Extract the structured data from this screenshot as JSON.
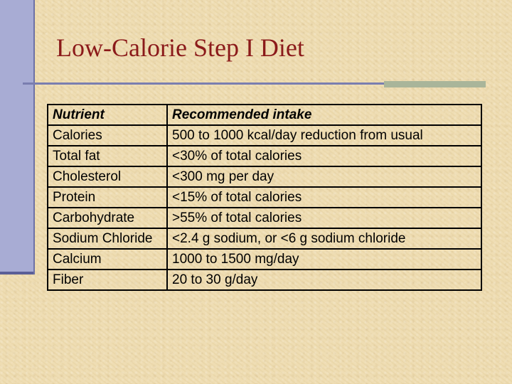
{
  "slide": {
    "title": "Low-Calorie Step I Diet",
    "accent_color": "#8b1a1a",
    "bar_color": "#a8acd4"
  },
  "table": {
    "headers": [
      "Nutrient",
      "Recommended intake"
    ],
    "rows": [
      [
        "Calories",
        "500 to 1000 kcal/day reduction from usual"
      ],
      [
        "Total fat",
        "<30% of total calories"
      ],
      [
        "Cholesterol",
        "<300 mg per day"
      ],
      [
        "Protein",
        "<15% of total calories"
      ],
      [
        "Carbohydrate",
        ">55% of total calories"
      ],
      [
        "Sodium Chloride",
        "<2.4 g sodium, or <6 g sodium chloride"
      ],
      [
        "Calcium",
        "1000 to 1500 mg/day"
      ],
      [
        "Fiber",
        "20 to 30 g/day"
      ]
    ]
  }
}
